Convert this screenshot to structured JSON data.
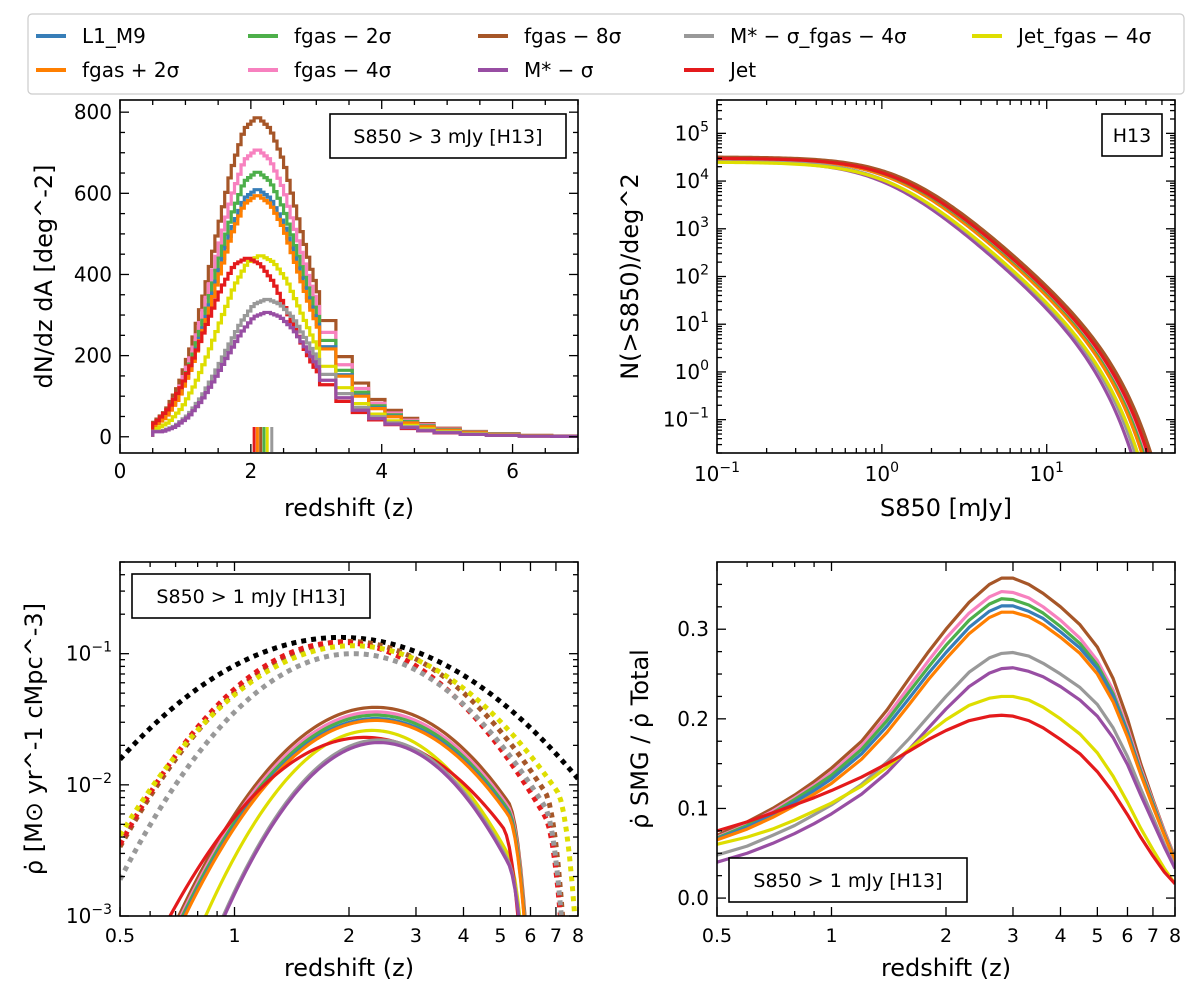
{
  "legend": [
    {
      "label": "L1_M9",
      "color": "#377eb8"
    },
    {
      "label": "fgas + 2σ",
      "color": "#ff7f00"
    },
    {
      "label": "fgas − 2σ",
      "color": "#4daf4a"
    },
    {
      "label": "fgas − 4σ",
      "color": "#f781bf"
    },
    {
      "label": "fgas − 8σ",
      "color": "#a65628"
    },
    {
      "label": "M* − σ",
      "color": "#984ea3"
    },
    {
      "label": "M* − σ_fgas − 4σ",
      "color": "#999999"
    },
    {
      "label": "Jet",
      "color": "#e41a1c"
    },
    {
      "label": "Jet_fgas − 4σ",
      "color": "#dede00"
    }
  ],
  "chart_data": [
    {
      "id": "top-left",
      "type": "line",
      "step": true,
      "title_box": "S850 > 3 mJy [H13]",
      "xlabel": "redshift (z)",
      "ylabel": "dN/dz dA [deg^-2]",
      "xlim": [
        0,
        7
      ],
      "ylim": [
        -40,
        830
      ],
      "xticks": [
        "0",
        "2",
        "4",
        "6"
      ],
      "yticks": [
        "0",
        "200",
        "400",
        "600",
        "800"
      ],
      "shape_x": [
        0.5,
        0.7,
        0.9,
        1.1,
        1.3,
        1.5,
        1.7,
        1.9,
        2.1,
        2.3,
        2.5,
        2.7,
        2.9,
        3.1,
        3.3,
        3.5,
        3.7,
        3.9,
        4.1,
        4.3,
        4.5,
        4.7,
        4.9,
        5.2,
        5.5,
        5.8,
        6.2,
        6.6,
        7.0
      ],
      "shape": [
        0.04,
        0.08,
        0.16,
        0.29,
        0.46,
        0.65,
        0.83,
        0.96,
        1.0,
        0.96,
        0.86,
        0.7,
        0.54,
        0.4,
        0.3,
        0.22,
        0.16,
        0.12,
        0.09,
        0.07,
        0.05,
        0.04,
        0.03,
        0.02,
        0.015,
        0.01,
        0.005,
        0.003,
        0.002
      ],
      "series": [
        {
          "name": "L1_M9",
          "color": "#377eb8",
          "peak": 612,
          "shift": 0
        },
        {
          "name": "fgas + 2σ",
          "color": "#ff7f00",
          "peak": 597,
          "shift": 0
        },
        {
          "name": "fgas − 2σ",
          "color": "#4daf4a",
          "peak": 655,
          "shift": 0
        },
        {
          "name": "fgas − 4σ",
          "color": "#f781bf",
          "peak": 710,
          "shift": 0
        },
        {
          "name": "fgas − 8σ",
          "color": "#a65628",
          "peak": 790,
          "shift": 0
        },
        {
          "name": "M* − σ",
          "color": "#984ea3",
          "peak": 308,
          "shift": 0.15
        },
        {
          "name": "M* − σ_fgas − 4σ",
          "color": "#999999",
          "peak": 340,
          "shift": 0.15
        },
        {
          "name": "Jet",
          "color": "#e41a1c",
          "peak": 442,
          "shift": -0.15
        },
        {
          "name": "Jet_fgas − 4σ",
          "color": "#dede00",
          "peak": 448,
          "shift": 0.05
        }
      ],
      "median_markers": [
        {
          "color": "#e41a1c",
          "z": 2.05
        },
        {
          "color": "#ff7f00",
          "z": 2.1
        },
        {
          "color": "#a65628",
          "z": 2.15
        },
        {
          "color": "#4daf4a",
          "z": 2.2
        },
        {
          "color": "#dede00",
          "z": 2.25
        },
        {
          "color": "#999999",
          "z": 2.32
        }
      ]
    },
    {
      "id": "top-right",
      "type": "line",
      "title_box": "H13",
      "xlabel": "S850 [mJy]",
      "ylabel": "N(>S850)/deg^2",
      "xscale": "log",
      "yscale": "log",
      "xlim": [
        0.1,
        60
      ],
      "ylim": [
        0.02,
        500000
      ],
      "xticks": [
        "10^-1",
        "10^0",
        "10^1"
      ],
      "yticks": [
        "10^-1",
        "10^0",
        "10^1",
        "10^2",
        "10^3",
        "10^4",
        "10^5"
      ],
      "series": [
        {
          "name": "L1_M9",
          "color": "#377eb8",
          "n0": 30000,
          "s0": 1.2
        },
        {
          "name": "fgas + 2σ",
          "color": "#ff7f00",
          "n0": 30000,
          "s0": 1.2
        },
        {
          "name": "fgas − 2σ",
          "color": "#4daf4a",
          "n0": 31000,
          "s0": 1.25
        },
        {
          "name": "fgas − 4σ",
          "color": "#f781bf",
          "n0": 31000,
          "s0": 1.28
        },
        {
          "name": "fgas − 8σ",
          "color": "#a65628",
          "n0": 32000,
          "s0": 1.35
        },
        {
          "name": "M* − σ",
          "color": "#984ea3",
          "n0": 26000,
          "s0": 1.05
        },
        {
          "name": "M* − σ_fgas − 4σ",
          "color": "#999999",
          "n0": 27000,
          "s0": 1.1
        },
        {
          "name": "Jet",
          "color": "#e41a1c",
          "n0": 30000,
          "s0": 1.3
        },
        {
          "name": "Jet_fgas − 4σ",
          "color": "#dede00",
          "n0": 25000,
          "s0": 1.15
        }
      ]
    },
    {
      "id": "bottom-left",
      "type": "line",
      "title_box": "S850 > 1 mJy [H13]",
      "xlabel": "redshift (z)",
      "ylabel": "ρ̇ [M⊙ yr^-1 cMpc^-3]",
      "xscale": "log",
      "yscale": "log",
      "xlim": [
        0.5,
        8
      ],
      "ylim": [
        0.001,
        0.5
      ],
      "xticks": [
        "0.5",
        "1",
        "2",
        "3",
        "4",
        "5",
        "6",
        "7",
        "8"
      ],
      "yticks": [
        "10^-3",
        "10^-2",
        "10^-1"
      ],
      "total_dotted": [
        {
          "color": "#000000",
          "peak": 0.133,
          "zpeak": 1.9,
          "width": 0.85
        },
        {
          "color": "#a65628",
          "peak": 0.124,
          "zpeak": 2.0,
          "width": 0.68
        },
        {
          "color": "#e41a1c",
          "peak": 0.122,
          "zpeak": 1.9,
          "width": 0.66
        },
        {
          "color": "#dede00",
          "peak": 0.115,
          "zpeak": 2.05,
          "width": 0.72
        },
        {
          "color": "#999999",
          "peak": 0.1,
          "zpeak": 2.05,
          "width": 0.66
        }
      ],
      "series": [
        {
          "name": "fgas − 8σ",
          "color": "#a65628",
          "peak": 0.039,
          "zpeak": 2.35,
          "width": 0.58,
          "end": 5.8
        },
        {
          "name": "fgas − 4σ",
          "color": "#f781bf",
          "peak": 0.036,
          "zpeak": 2.35,
          "width": 0.58,
          "end": 5.8
        },
        {
          "name": "fgas − 2σ",
          "color": "#4daf4a",
          "peak": 0.034,
          "zpeak": 2.35,
          "width": 0.58,
          "end": 5.8
        },
        {
          "name": "L1_M9",
          "color": "#377eb8",
          "peak": 0.032,
          "zpeak": 2.35,
          "width": 0.58,
          "end": 5.8
        },
        {
          "name": "fgas + 2σ",
          "color": "#ff7f00",
          "peak": 0.031,
          "zpeak": 2.35,
          "width": 0.58,
          "end": 5.8
        },
        {
          "name": "Jet_fgas − 4σ",
          "color": "#dede00",
          "peak": 0.026,
          "zpeak": 2.3,
          "width": 0.52,
          "end": 5.8
        },
        {
          "name": "Jet",
          "color": "#e41a1c",
          "peak": 0.023,
          "zpeak": 2.2,
          "width": 0.62,
          "end": 5.6
        },
        {
          "name": "M* − σ_fgas − 4σ",
          "color": "#999999",
          "peak": 0.022,
          "zpeak": 2.4,
          "width": 0.5,
          "end": 5.8
        },
        {
          "name": "M* − σ",
          "color": "#984ea3",
          "peak": 0.021,
          "zpeak": 2.4,
          "width": 0.5,
          "end": 5.8
        }
      ]
    },
    {
      "id": "bottom-right",
      "type": "line",
      "title_box": "S850 > 1 mJy [H13]",
      "xlabel": "redshift (z)",
      "ylabel": "ρ̇ SMG / ρ̇ Total",
      "xscale": "log",
      "xlim": [
        0.5,
        8
      ],
      "ylim": [
        -0.02,
        0.375
      ],
      "xticks": [
        "0.5",
        "1",
        "2",
        "3",
        "4",
        "5",
        "6",
        "7",
        "8"
      ],
      "yticks": [
        "0.0",
        "0.1",
        "0.2",
        "0.3"
      ],
      "x": [
        0.5,
        0.6,
        0.7,
        0.8,
        0.9,
        1.0,
        1.2,
        1.4,
        1.6,
        1.8,
        2.0,
        2.3,
        2.6,
        2.8,
        3.0,
        3.3,
        3.6,
        4.0,
        4.5,
        5.0,
        5.5,
        6.0,
        6.5,
        7.0,
        7.5,
        8.0
      ],
      "series": [
        {
          "name": "fgas − 8σ",
          "color": "#a65628",
          "values": [
            0.07,
            0.085,
            0.1,
            0.115,
            0.13,
            0.145,
            0.175,
            0.21,
            0.245,
            0.275,
            0.3,
            0.33,
            0.35,
            0.357,
            0.357,
            0.35,
            0.34,
            0.325,
            0.305,
            0.28,
            0.245,
            0.2,
            0.15,
            0.11,
            0.075,
            0.045
          ]
        },
        {
          "name": "fgas − 4σ",
          "color": "#f781bf",
          "values": [
            0.068,
            0.082,
            0.097,
            0.112,
            0.126,
            0.14,
            0.17,
            0.203,
            0.236,
            0.265,
            0.29,
            0.318,
            0.336,
            0.342,
            0.341,
            0.335,
            0.325,
            0.31,
            0.29,
            0.265,
            0.232,
            0.19,
            0.145,
            0.108,
            0.074,
            0.044
          ]
        },
        {
          "name": "fgas − 2σ",
          "color": "#4daf4a",
          "values": [
            0.067,
            0.081,
            0.095,
            0.11,
            0.124,
            0.137,
            0.166,
            0.198,
            0.23,
            0.258,
            0.282,
            0.31,
            0.328,
            0.334,
            0.333,
            0.327,
            0.318,
            0.303,
            0.284,
            0.26,
            0.228,
            0.186,
            0.142,
            0.106,
            0.072,
            0.043
          ]
        },
        {
          "name": "L1_M9",
          "color": "#377eb8",
          "values": [
            0.066,
            0.079,
            0.093,
            0.107,
            0.12,
            0.133,
            0.161,
            0.192,
            0.223,
            0.251,
            0.274,
            0.302,
            0.32,
            0.326,
            0.326,
            0.32,
            0.312,
            0.297,
            0.279,
            0.256,
            0.225,
            0.184,
            0.14,
            0.104,
            0.071,
            0.042
          ]
        },
        {
          "name": "fgas + 2σ",
          "color": "#ff7f00",
          "values": [
            0.065,
            0.077,
            0.09,
            0.103,
            0.116,
            0.128,
            0.155,
            0.185,
            0.216,
            0.244,
            0.267,
            0.295,
            0.313,
            0.319,
            0.319,
            0.314,
            0.305,
            0.291,
            0.273,
            0.25,
            0.219,
            0.18,
            0.138,
            0.102,
            0.07,
            0.041
          ]
        },
        {
          "name": "M* − σ_fgas − 4σ",
          "color": "#999999",
          "values": [
            0.048,
            0.058,
            0.07,
            0.081,
            0.093,
            0.104,
            0.127,
            0.152,
            0.178,
            0.203,
            0.225,
            0.252,
            0.268,
            0.273,
            0.274,
            0.27,
            0.262,
            0.25,
            0.235,
            0.216,
            0.19,
            0.158,
            0.122,
            0.09,
            0.06,
            0.035
          ]
        },
        {
          "name": "M* − σ",
          "color": "#984ea3",
          "values": [
            0.04,
            0.05,
            0.061,
            0.072,
            0.083,
            0.094,
            0.116,
            0.14,
            0.166,
            0.19,
            0.211,
            0.236,
            0.251,
            0.256,
            0.257,
            0.253,
            0.247,
            0.236,
            0.221,
            0.203,
            0.179,
            0.149,
            0.115,
            0.085,
            0.057,
            0.033
          ]
        },
        {
          "name": "Jet_fgas − 4σ",
          "color": "#dede00",
          "values": [
            0.06,
            0.068,
            0.077,
            0.087,
            0.097,
            0.106,
            0.125,
            0.146,
            0.166,
            0.184,
            0.199,
            0.215,
            0.223,
            0.225,
            0.225,
            0.221,
            0.213,
            0.2,
            0.183,
            0.162,
            0.136,
            0.107,
            0.078,
            0.054,
            0.033,
            0.016
          ]
        },
        {
          "name": "Jet",
          "color": "#e41a1c",
          "values": [
            0.075,
            0.085,
            0.095,
            0.104,
            0.112,
            0.12,
            0.135,
            0.15,
            0.164,
            0.177,
            0.187,
            0.198,
            0.203,
            0.204,
            0.203,
            0.198,
            0.19,
            0.177,
            0.161,
            0.141,
            0.118,
            0.093,
            0.068,
            0.047,
            0.029,
            0.016
          ]
        }
      ]
    }
  ]
}
